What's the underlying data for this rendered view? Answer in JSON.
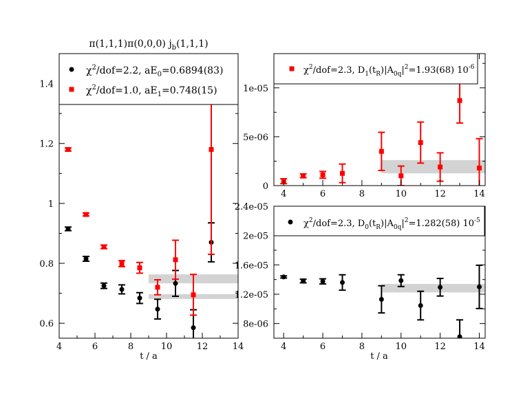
{
  "chart_data": [
    {
      "id": "left",
      "type": "scatter",
      "title": "π(1,1,1)π(0,0,0)  j_b(1,1,1)",
      "title_parts": [
        "π(1,1,1)π(0,0,0)  j",
        "b",
        "(1,1,1)"
      ],
      "xlabel": "t / a",
      "ylabel": "",
      "xlim": [
        4,
        14
      ],
      "ylim": [
        0.55,
        1.5
      ],
      "xticks": [
        4,
        6,
        8,
        10,
        12,
        14
      ],
      "yticks": [
        0.6,
        0.8,
        1,
        1.2,
        1.4
      ],
      "ytick_labels": [
        "0.6",
        "0.8",
        "1",
        "1.2",
        "1.4"
      ],
      "grid": false,
      "legend_position": "top-right",
      "series": [
        {
          "name": "χ2/dof=2.2, aE0=0.6894(83)",
          "legend_parts": [
            "χ",
            "2",
            "/dof=2.2,  aE",
            "0",
            "=0.6894(83)"
          ],
          "color": "#000000",
          "marker": "circle",
          "points": [
            {
              "x": 4.5,
              "y": 0.915,
              "err": 0.006
            },
            {
              "x": 5.5,
              "y": 0.815,
              "err": 0.008
            },
            {
              "x": 6.5,
              "y": 0.725,
              "err": 0.009
            },
            {
              "x": 7.5,
              "y": 0.713,
              "err": 0.015
            },
            {
              "x": 8.5,
              "y": 0.684,
              "err": 0.018
            },
            {
              "x": 9.5,
              "y": 0.647,
              "err": 0.033
            },
            {
              "x": 10.5,
              "y": 0.733,
              "err": 0.043
            },
            {
              "x": 11.5,
              "y": 0.585,
              "err": 0.06
            },
            {
              "x": 12.5,
              "y": 0.87,
              "err": 0.065
            }
          ],
          "fit_band": {
            "x": [
              9,
              14
            ],
            "y": [
              0.681,
              0.697
            ]
          }
        },
        {
          "name": "χ2/dof=1.0, aE1=0.748(15)",
          "legend_parts": [
            "χ",
            "2",
            "/dof=1.0,  aE",
            "1",
            "=0.748(15)"
          ],
          "color": "#ff0000",
          "marker": "square",
          "points": [
            {
              "x": 4.5,
              "y": 1.18,
              "err": 0.005
            },
            {
              "x": 5.5,
              "y": 0.963,
              "err": 0.005
            },
            {
              "x": 6.5,
              "y": 0.855,
              "err": 0.006
            },
            {
              "x": 7.5,
              "y": 0.799,
              "err": 0.01
            },
            {
              "x": 8.5,
              "y": 0.785,
              "err": 0.018
            },
            {
              "x": 9.5,
              "y": 0.72,
              "err": 0.025
            },
            {
              "x": 10.5,
              "y": 0.812,
              "err": 0.065
            },
            {
              "x": 11.5,
              "y": 0.695,
              "err": 0.068
            },
            {
              "x": 12.5,
              "y": 1.18,
              "err": 0.35
            }
          ],
          "fit_band": {
            "x": [
              9,
              14
            ],
            "y": [
              0.733,
              0.763
            ]
          }
        }
      ]
    },
    {
      "id": "top-right",
      "type": "scatter",
      "title": "",
      "xlabel": "",
      "ylabel": "",
      "xlim": [
        3.5,
        14.3
      ],
      "ylim": [
        0,
        1.35e-05
      ],
      "xticks": [
        4,
        6,
        8,
        10,
        12,
        14
      ],
      "yticks": [
        0,
        5e-06,
        1e-05
      ],
      "ytick_labels": [
        "0",
        "5e-06",
        "1e-05"
      ],
      "grid": false,
      "legend_position": "top-right",
      "series": [
        {
          "name": "χ2/dof=2.3, D1(tR)|A0q|2=1.93(68) 10-6",
          "legend_parts": [
            "χ",
            "2",
            "/dof=2.3, D",
            "1",
            "(t",
            "R",
            ")|A",
            "0q",
            "|",
            "2",
            "=1.93(68) 10",
            "-6"
          ],
          "color": "#ff0000",
          "marker": "square",
          "points": [
            {
              "x": 4,
              "y": 4.5e-07,
              "err": 2.5e-07
            },
            {
              "x": 5,
              "y": 1e-06,
              "err": 2e-07
            },
            {
              "x": 6,
              "y": 1.1e-06,
              "err": 3.5e-07
            },
            {
              "x": 7,
              "y": 1.25e-06,
              "err": 9.5e-07
            },
            {
              "x": 9,
              "y": 3.5e-06,
              "err": 1.95e-06
            },
            {
              "x": 10,
              "y": 1e-06,
              "err": 1e-06
            },
            {
              "x": 11,
              "y": 4.4e-06,
              "err": 2.1e-06
            },
            {
              "x": 12,
              "y": 1.9e-06,
              "err": 1.45e-06
            },
            {
              "x": 13,
              "y": 8.7e-06,
              "err": 2.3e-06
            },
            {
              "x": 14,
              "y": 1.8e-06,
              "err": 3e-06
            }
          ],
          "fit_band": {
            "x": [
              9,
              14.3
            ],
            "y": [
              1.25e-06,
              2.61e-06
            ]
          }
        }
      ]
    },
    {
      "id": "bottom-right",
      "type": "scatter",
      "title": "",
      "xlabel": "t / a",
      "ylabel": "",
      "xlim": [
        3.5,
        14.3
      ],
      "ylim": [
        6e-06,
        2.4e-05
      ],
      "xticks": [
        4,
        6,
        8,
        10,
        12,
        14
      ],
      "yticks": [
        8e-06,
        1.2e-05,
        1.6e-05,
        2e-05,
        2.4e-05
      ],
      "ytick_labels": [
        "8e-06",
        "1.2e-05",
        "1.6e-05",
        "2e-05",
        "2.4e-05"
      ],
      "grid": false,
      "legend_position": "top-right",
      "series": [
        {
          "name": "χ2/dof=2.3, D0(tR)|A0q|2=1.282(58) 10-5",
          "legend_parts": [
            "χ",
            "2",
            "/dof=2.3, D",
            "0",
            "(t",
            "R",
            ")|A",
            "0q",
            "|",
            "2",
            "=1.282(58) 10",
            "-5"
          ],
          "color": "#000000",
          "marker": "circle",
          "points": [
            {
              "x": 4,
              "y": 1.435e-05,
              "err": 1.5e-07
            },
            {
              "x": 5,
              "y": 1.38e-05,
              "err": 2.5e-07
            },
            {
              "x": 6,
              "y": 1.375e-05,
              "err": 3.5e-07
            },
            {
              "x": 7,
              "y": 1.36e-05,
              "err": 1.05e-06
            },
            {
              "x": 9,
              "y": 1.13e-05,
              "err": 1.85e-06
            },
            {
              "x": 10,
              "y": 1.385e-05,
              "err": 8e-07
            },
            {
              "x": 11,
              "y": 1.045e-05,
              "err": 1.95e-06
            },
            {
              "x": 12,
              "y": 1.295e-05,
              "err": 1.2e-06
            },
            {
              "x": 13,
              "y": 6.2e-06,
              "err": 2.3e-06
            },
            {
              "x": 14,
              "y": 1.3e-05,
              "err": 2.95e-06
            }
          ],
          "fit_band": {
            "x": [
              9,
              14.3
            ],
            "y": [
              1.224e-05,
              1.34e-05
            ]
          }
        }
      ]
    }
  ]
}
